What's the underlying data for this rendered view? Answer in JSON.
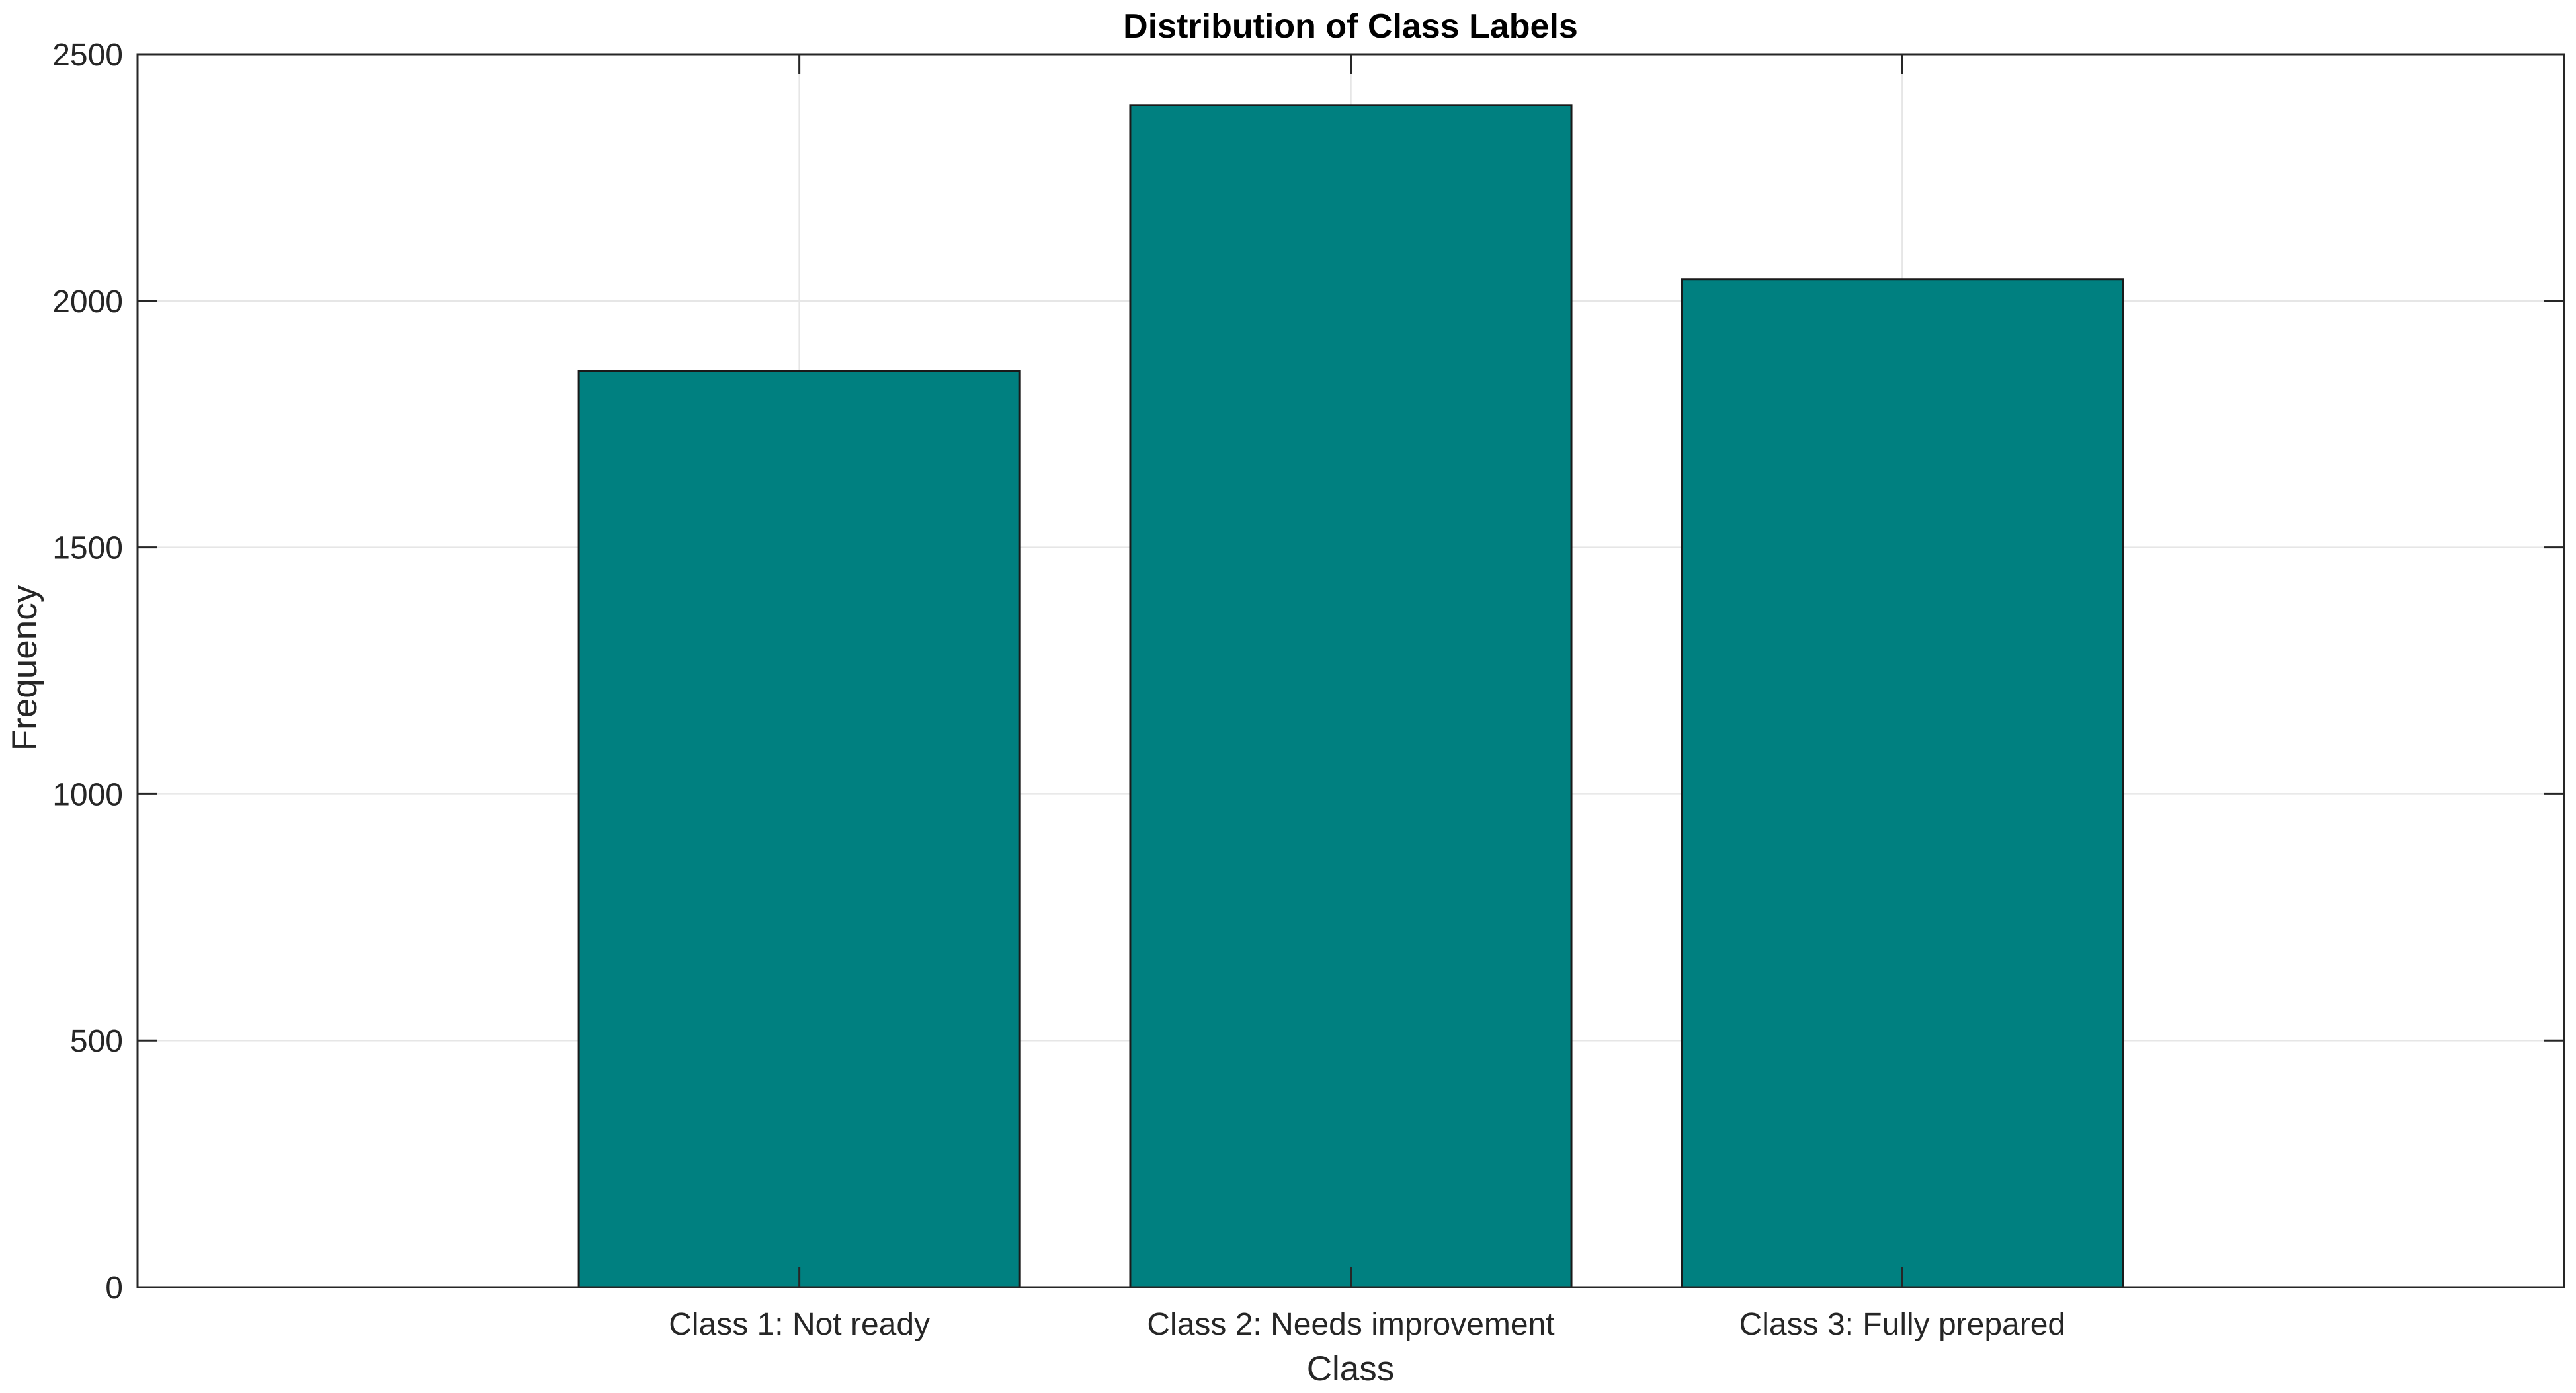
{
  "chart_data": {
    "type": "bar",
    "title": "Distribution of Class Labels",
    "xlabel": "Class",
    "ylabel": "Frequency",
    "categories": [
      "Class 1: Not ready",
      "Class 2: Needs improvement",
      "Class 3: Fully prepared"
    ],
    "values": [
      1858,
      2397,
      2043
    ],
    "ylim": [
      0,
      2500
    ],
    "yticks": [
      0,
      500,
      1000,
      1500,
      2000,
      2500
    ],
    "xlim": [
      -0.2,
      4.2
    ],
    "x_positions": [
      1,
      2,
      3
    ],
    "grid": true,
    "colors": {
      "bar_fill": "#008080",
      "bar_edge": "#1a1a1a",
      "grid": "#e6e6e6",
      "axis": "#262626"
    }
  }
}
